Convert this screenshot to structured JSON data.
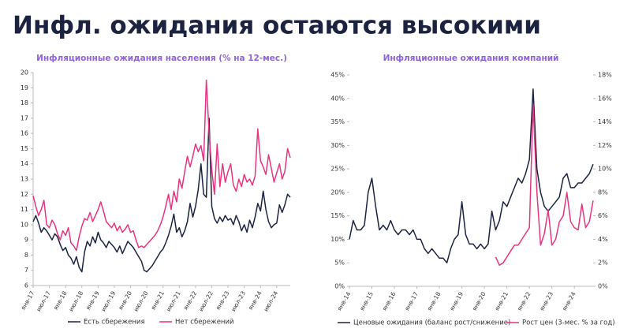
{
  "title": "Инфл. ожидания остаются высокими",
  "chart_data": [
    {
      "type": "line",
      "title": "Инфляционные ожидания населения (% на 12-мес.)",
      "categories": [
        "янв-17",
        null,
        null,
        null,
        null,
        null,
        "июл-17",
        null,
        null,
        null,
        null,
        null,
        "янв-18",
        null,
        null,
        null,
        null,
        null,
        "июл-18",
        null,
        null,
        null,
        null,
        null,
        "янв-19",
        null,
        null,
        null,
        null,
        null,
        "июл-19",
        null,
        null,
        null,
        null,
        null,
        "янв-20",
        null,
        null,
        null,
        null,
        null,
        "июл-20",
        null,
        null,
        null,
        null,
        null,
        "янв-21",
        null,
        null,
        null,
        null,
        null,
        "июл-21",
        null,
        null,
        null,
        null,
        null,
        "янв-22",
        null,
        null,
        null,
        null,
        null,
        "июл-22",
        null,
        null,
        null,
        null,
        null,
        "янв-23",
        null,
        null,
        null,
        null,
        null,
        "июл-23",
        null,
        null,
        null,
        null,
        null,
        "янв-24",
        null,
        null,
        null,
        null,
        null,
        "июл-24",
        null,
        null,
        null,
        null,
        null
      ],
      "series": [
        {
          "name": "Есть сбережения",
          "color": "#1b2341",
          "values": [
            10.2,
            10.6,
            10.1,
            9.5,
            9.8,
            9.6,
            9.3,
            9.0,
            9.4,
            9.2,
            8.7,
            8.3,
            8.5,
            8.0,
            7.8,
            7.4,
            7.9,
            7.2,
            6.9,
            8.2,
            8.9,
            8.6,
            9.2,
            8.8,
            9.5,
            9.0,
            8.8,
            8.5,
            8.9,
            8.7,
            8.5,
            8.2,
            8.6,
            8.1,
            8.5,
            8.9,
            8.7,
            8.5,
            8.2,
            7.9,
            7.6,
            7.0,
            6.9,
            7.1,
            7.3,
            7.6,
            7.9,
            8.2,
            8.4,
            8.8,
            9.3,
            9.9,
            10.7,
            9.5,
            9.8,
            9.2,
            9.6,
            10.2,
            11.4,
            10.5,
            11.2,
            12.3,
            14.0,
            12.0,
            11.8,
            17.0,
            11.2,
            10.4,
            10.1,
            10.5,
            10.2,
            10.6,
            10.3,
            10.4,
            10.0,
            10.6,
            10.2,
            9.6,
            10.0,
            9.5,
            10.3,
            9.8,
            10.5,
            11.4,
            10.9,
            12.2,
            11.0,
            10.2,
            9.8,
            10.0,
            10.1,
            11.3,
            10.8,
            11.3,
            12.0,
            11.8
          ]
        },
        {
          "name": "Нет сбережений",
          "color": "#e8337f",
          "values": [
            11.9,
            11.2,
            10.6,
            11.0,
            11.6,
            10.0,
            9.8,
            10.3,
            10.0,
            9.4,
            9.0,
            9.6,
            9.3,
            9.8,
            8.8,
            8.6,
            8.3,
            9.2,
            9.9,
            10.4,
            10.3,
            10.8,
            10.2,
            10.6,
            11.0,
            11.5,
            10.9,
            10.2,
            10.0,
            9.8,
            10.1,
            9.6,
            9.9,
            9.5,
            9.7,
            10.0,
            9.5,
            9.6,
            9.0,
            8.5,
            8.6,
            8.5,
            8.7,
            8.9,
            9.1,
            9.3,
            9.6,
            10.0,
            10.5,
            11.2,
            12.0,
            11.0,
            12.2,
            11.5,
            13.0,
            12.4,
            13.5,
            14.5,
            13.8,
            14.5,
            15.3,
            14.8,
            15.2,
            14.2,
            19.5,
            16.0,
            13.6,
            12.0,
            15.3,
            12.5,
            14.0,
            12.8,
            13.5,
            14.0,
            12.6,
            12.2,
            13.0,
            12.5,
            13.3,
            12.8,
            13.0,
            12.6,
            13.2,
            16.3,
            14.2,
            13.8,
            13.3,
            14.6,
            13.7,
            12.8,
            13.4,
            14.0,
            13.0,
            13.5,
            15.0,
            14.4
          ]
        }
      ],
      "ylim": [
        6,
        20
      ],
      "yticks": [
        6,
        7,
        8,
        9,
        10,
        11,
        12,
        13,
        14,
        15,
        16,
        17,
        18,
        19,
        20
      ],
      "grid": false,
      "legend": "bottom"
    },
    {
      "type": "line",
      "title": "Инфляционные ожидания компаний",
      "categories": [
        "янв-14",
        null,
        null,
        null,
        null,
        null,
        "янв-15",
        null,
        null,
        null,
        null,
        null,
        "янв-16",
        null,
        null,
        null,
        null,
        null,
        "янв-17",
        null,
        null,
        null,
        null,
        null,
        "янв-18",
        null,
        null,
        null,
        null,
        null,
        "янв-19",
        null,
        null,
        null,
        null,
        null,
        "янв-20",
        null,
        null,
        null,
        null,
        null,
        "янв-21",
        null,
        null,
        null,
        null,
        null,
        "янв-22",
        null,
        null,
        null,
        null,
        null,
        "янв-23",
        null,
        null,
        null,
        null,
        null,
        "янв-24",
        null,
        null,
        null,
        null,
        null
      ],
      "series": [
        {
          "name": "Ценовые ожидания (баланс рост/снижение)",
          "color": "#1b2341",
          "values": [
            10,
            14,
            12,
            12,
            13,
            20,
            23,
            17,
            12,
            13,
            12,
            14,
            12,
            11,
            12,
            12,
            11,
            12,
            10,
            10,
            8,
            7,
            8,
            7,
            6,
            6,
            5,
            8,
            10,
            11,
            18,
            11,
            9,
            9,
            8,
            9,
            8,
            9,
            16,
            12,
            14,
            18,
            17,
            19,
            21,
            23,
            22,
            24,
            27,
            42,
            25,
            20,
            17,
            16,
            17,
            18,
            19,
            23,
            24,
            21,
            21,
            22,
            22,
            23,
            24,
            26
          ]
        },
        {
          "name": "Рост цен (3-мес. % за год)",
          "color": "#e8337f",
          "axis": "y2",
          "values": [
            null,
            null,
            null,
            null,
            null,
            null,
            null,
            null,
            null,
            null,
            null,
            null,
            null,
            null,
            null,
            null,
            null,
            null,
            null,
            null,
            null,
            null,
            null,
            null,
            null,
            null,
            null,
            null,
            null,
            null,
            null,
            null,
            null,
            null,
            null,
            null,
            null,
            null,
            null,
            2.5,
            1.8,
            2.0,
            2.5,
            3.0,
            3.5,
            3.5,
            4.0,
            4.5,
            5.0,
            15.5,
            8.0,
            3.5,
            4.5,
            6.5,
            3.5,
            4.0,
            5.5,
            6.0,
            8.0,
            5.5,
            5.0,
            4.8,
            7.0,
            5.0,
            5.5,
            7.3
          ]
        }
      ],
      "ylim": [
        0,
        45
      ],
      "yticks": [
        {
          "value": 0,
          "label": "0%"
        },
        {
          "value": 5,
          "label": "5%"
        },
        {
          "value": 10,
          "label": "10%"
        },
        {
          "value": 15,
          "label": "15%"
        },
        {
          "value": 20,
          "label": "20%"
        },
        {
          "value": 25,
          "label": "25%"
        },
        {
          "value": 30,
          "label": "30%"
        },
        {
          "value": 35,
          "label": "35%"
        },
        {
          "value": 40,
          "label": "40%"
        },
        {
          "value": 45,
          "label": "45%"
        }
      ],
      "y2lim": [
        0,
        18
      ],
      "y2ticks": [
        {
          "value": 0,
          "label": "0%"
        },
        {
          "value": 2,
          "label": "2%"
        },
        {
          "value": 4,
          "label": "4%"
        },
        {
          "value": 6,
          "label": "6%"
        },
        {
          "value": 8,
          "label": "8%"
        },
        {
          "value": 10,
          "label": "10%"
        },
        {
          "value": 12,
          "label": "12%"
        },
        {
          "value": 14,
          "label": "14%"
        },
        {
          "value": 16,
          "label": "16%"
        },
        {
          "value": 18,
          "label": "18%"
        }
      ],
      "grid": false,
      "legend": "bottom"
    }
  ]
}
